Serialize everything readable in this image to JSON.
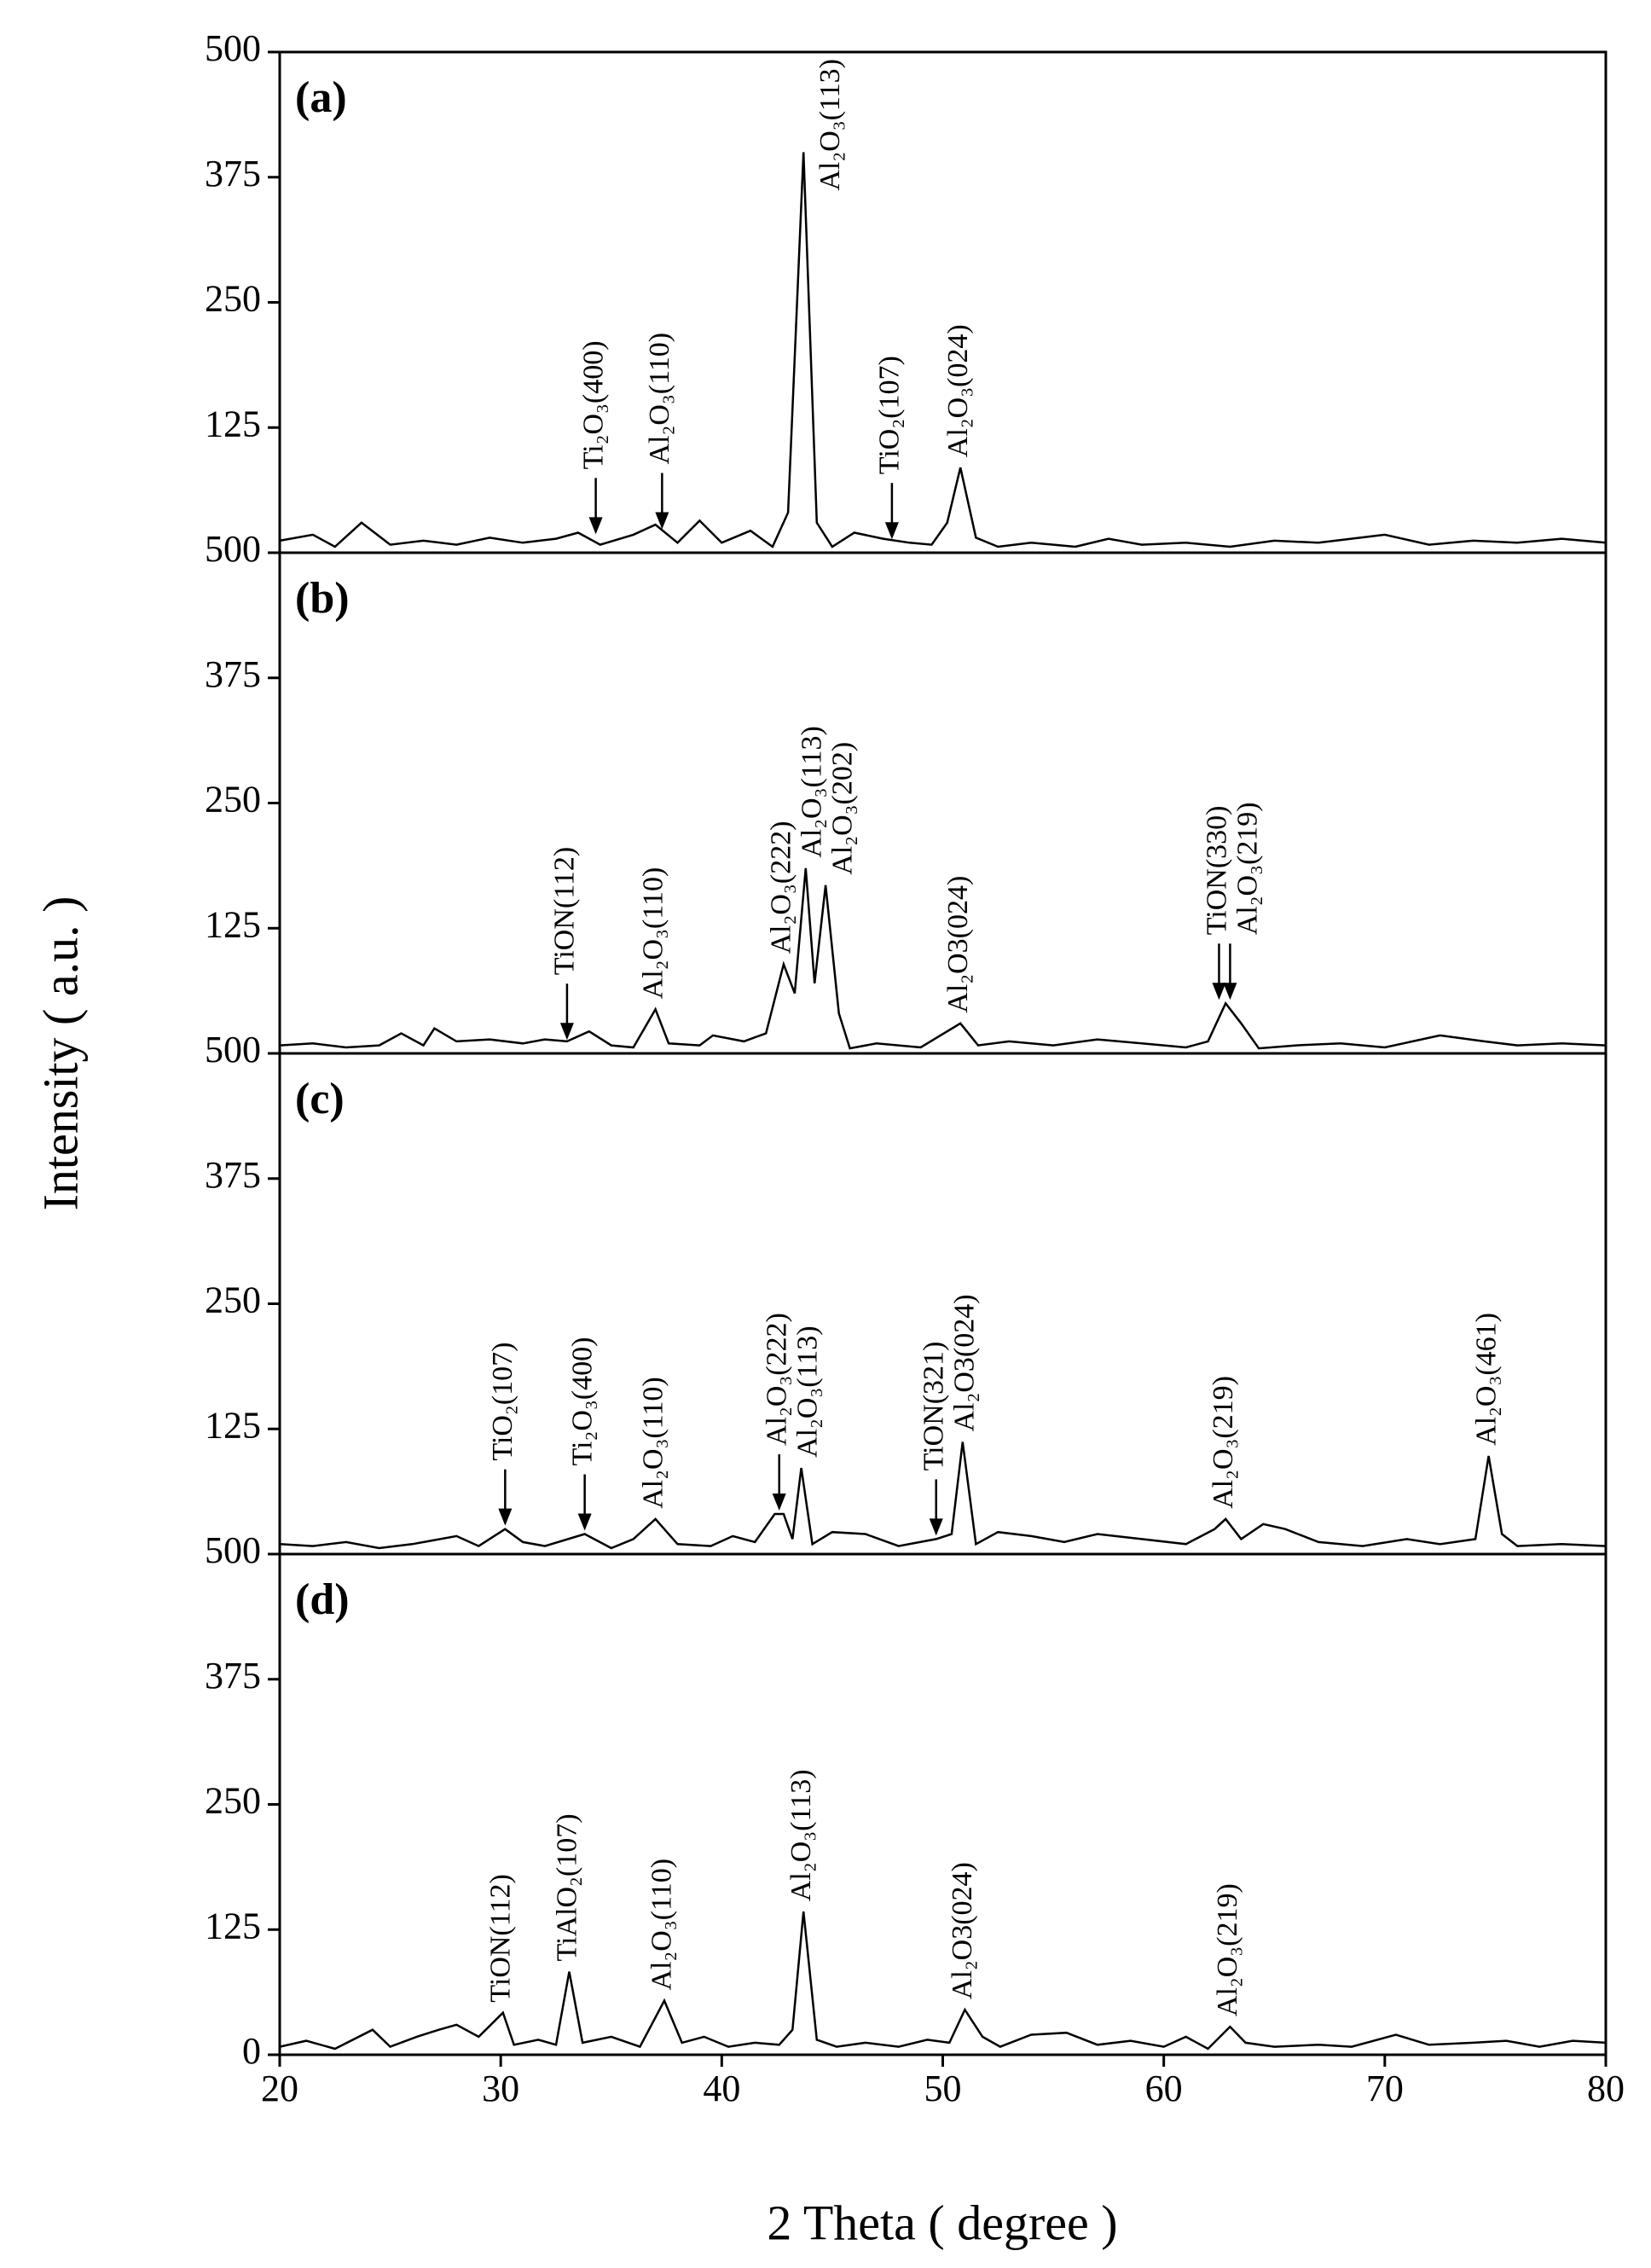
{
  "y_label": "Intensity ( a.u. )",
  "x_label": "2 Theta ( degree )",
  "chart_data": [
    {
      "type": "line",
      "label": "(a)",
      "color": "#000000",
      "xlim": [
        20,
        80
      ],
      "ylim": [
        0,
        500
      ],
      "yticks": [
        125,
        250,
        375,
        500
      ],
      "x": [
        20,
        21.5,
        22.5,
        23.7,
        25,
        26.5,
        28,
        29.5,
        31,
        32.5,
        33.5,
        34.5,
        36,
        37,
        38,
        39,
        40,
        41.3,
        42.3,
        43,
        43.7,
        44.3,
        45,
        46,
        47.3,
        48.5,
        49.5,
        50.2,
        50.8,
        51.5,
        52.5,
        54,
        56,
        57.5,
        59,
        61,
        63,
        65,
        67,
        70,
        72,
        74,
        76,
        78,
        80
      ],
      "values": [
        12,
        18,
        6,
        30,
        8,
        12,
        8,
        15,
        10,
        14,
        20,
        8,
        18,
        28,
        10,
        32,
        10,
        22,
        6,
        40,
        400,
        30,
        6,
        20,
        14,
        10,
        8,
        30,
        85,
        15,
        6,
        10,
        6,
        14,
        8,
        10,
        6,
        12,
        10,
        18,
        8,
        12,
        10,
        14,
        10
      ],
      "annotations": [
        {
          "text": "Ti₂O₃(400)",
          "x": 34.3,
          "y": 15,
          "arrow": true
        },
        {
          "text": "Al₂O₃(110)",
          "x": 37.3,
          "y": 20,
          "arrow": true
        },
        {
          "text": "Al₂O₃(113)",
          "x": 43.7,
          "y": 400,
          "arrow": false
        },
        {
          "text": "TiO₂(107)",
          "x": 47.7,
          "y": 10,
          "arrow": true
        },
        {
          "text": "Al₂O₃(024)",
          "x": 50.8,
          "y": 85,
          "arrow": false
        }
      ]
    },
    {
      "type": "line",
      "label": "(b)",
      "color": "#000000",
      "xlim": [
        20,
        80
      ],
      "ylim": [
        0,
        500
      ],
      "yticks": [
        125,
        250,
        375,
        500
      ],
      "x": [
        20,
        21.5,
        23,
        24.5,
        25.5,
        26.5,
        27,
        28,
        29.5,
        31,
        32,
        33,
        34,
        35,
        36,
        37,
        37.6,
        39,
        39.6,
        41,
        42,
        42.8,
        43.3,
        43.8,
        44.2,
        44.7,
        45.3,
        45.8,
        47,
        49,
        50.8,
        51.6,
        53,
        55,
        57,
        59,
        61,
        62,
        62.8,
        63.5,
        64.3,
        66,
        68,
        70,
        72.5,
        74.5,
        76,
        78,
        80
      ],
      "values": [
        8,
        10,
        6,
        8,
        20,
        8,
        25,
        12,
        14,
        10,
        14,
        12,
        22,
        8,
        6,
        44,
        10,
        8,
        18,
        12,
        20,
        89,
        60,
        185,
        70,
        168,
        40,
        5,
        10,
        6,
        30,
        8,
        12,
        8,
        14,
        10,
        6,
        12,
        50,
        30,
        5,
        8,
        10,
        6,
        18,
        12,
        8,
        10,
        8
      ],
      "annotations": [
        {
          "text": "TiON(112)",
          "x": 33,
          "y": 10,
          "arrow": true
        },
        {
          "text": "Al₂O₃(110)",
          "x": 37,
          "y": 44,
          "arrow": false
        },
        {
          "text": "Al₂O₃(222)",
          "x": 42.8,
          "y": 89,
          "arrow": false
        },
        {
          "text": "Al₂O₃(113)",
          "x": 43.8,
          "y": 185,
          "arrow": false
        },
        {
          "text": "Al₂O₃(202)",
          "x": 44.7,
          "y": 168,
          "arrow": false
        },
        {
          "text": "Al₂O3(024)",
          "x": 50.8,
          "y": 30,
          "arrow": false
        },
        {
          "text": "TiON(330)",
          "x": 62.5,
          "y": 50,
          "arrow": true
        },
        {
          "text": "Al₂O₃(219)",
          "x": 63,
          "y": 50,
          "arrow": true
        }
      ]
    },
    {
      "type": "line",
      "label": "(c)",
      "color": "#000000",
      "xlim": [
        20,
        80
      ],
      "ylim": [
        0,
        500
      ],
      "yticks": [
        125,
        250,
        375,
        500
      ],
      "x": [
        20,
        21.5,
        23,
        24.5,
        26,
        28,
        29,
        30.2,
        31,
        32,
        33.8,
        35,
        36,
        37,
        38,
        39.5,
        40.5,
        41.5,
        42.4,
        42.8,
        43.2,
        43.6,
        44.1,
        45,
        46.5,
        48,
        49.7,
        50.4,
        50.9,
        51.5,
        52.5,
        54,
        55.5,
        57,
        59,
        61,
        62.3,
        62.8,
        63.5,
        64.5,
        65.5,
        67,
        69,
        71,
        72.5,
        74.1,
        74.7,
        75.3,
        76,
        78,
        80
      ],
      "values": [
        10,
        8,
        12,
        6,
        10,
        18,
        8,
        25,
        12,
        8,
        20,
        6,
        15,
        35,
        10,
        8,
        18,
        12,
        40,
        40,
        15,
        86,
        10,
        22,
        20,
        8,
        15,
        20,
        112,
        10,
        22,
        18,
        12,
        20,
        15,
        10,
        25,
        35,
        15,
        30,
        25,
        12,
        8,
        15,
        10,
        15,
        98,
        20,
        8,
        10,
        8
      ],
      "annotations": [
        {
          "text": "TiO₂(107)",
          "x": 30.2,
          "y": 25,
          "arrow": true
        },
        {
          "text": "Ti₂O₃(400)",
          "x": 33.8,
          "y": 20,
          "arrow": true
        },
        {
          "text": "Al₂O₃(110)",
          "x": 37,
          "y": 35,
          "arrow": false
        },
        {
          "text": "Al₂O₃(222)",
          "x": 42.6,
          "y": 40,
          "arrow": true
        },
        {
          "text": "Al₂O₃(113)",
          "x": 43.6,
          "y": 86,
          "arrow": false
        },
        {
          "text": "TiON(321)",
          "x": 49.7,
          "y": 15,
          "arrow": true
        },
        {
          "text": "Al₂O3(024)",
          "x": 50.9,
          "y": 112,
          "arrow": false
        },
        {
          "text": "Al₂O₃(219)",
          "x": 62.8,
          "y": 35,
          "arrow": false
        },
        {
          "text": "Al₂O₃(461)",
          "x": 74.7,
          "y": 98,
          "arrow": false
        }
      ]
    },
    {
      "type": "line",
      "label": "(d)",
      "color": "#000000",
      "xlim": [
        20,
        80
      ],
      "ylim": [
        0,
        500
      ],
      "yticks": [
        0,
        125,
        250,
        375,
        500
      ],
      "xticks": [
        20,
        30,
        40,
        50,
        60,
        70,
        80
      ],
      "x": [
        20,
        21.2,
        22.5,
        24.2,
        25,
        26.2,
        27.2,
        28,
        29,
        30.1,
        30.6,
        31.7,
        32.5,
        33.1,
        33.7,
        35,
        36.3,
        37.4,
        38.2,
        39.2,
        40.3,
        41.5,
        42.6,
        43.2,
        43.7,
        44.3,
        45.2,
        46.5,
        48,
        49.3,
        50.3,
        51,
        51.8,
        52.6,
        54,
        55.6,
        57,
        58.5,
        60,
        61,
        62,
        63,
        63.7,
        65,
        67,
        68.5,
        70.5,
        72,
        74,
        75.5,
        77,
        78.5,
        80
      ],
      "values": [
        8,
        14,
        6,
        25,
        8,
        18,
        25,
        30,
        18,
        42,
        10,
        15,
        10,
        83,
        12,
        18,
        8,
        54,
        12,
        18,
        8,
        12,
        10,
        25,
        143,
        15,
        8,
        12,
        8,
        15,
        12,
        45,
        18,
        8,
        20,
        22,
        10,
        14,
        8,
        18,
        6,
        28,
        12,
        8,
        10,
        8,
        20,
        10,
        12,
        14,
        8,
        14,
        12
      ],
      "annotations": [
        {
          "text": "TiON(112)",
          "x": 30.1,
          "y": 42,
          "arrow": false
        },
        {
          "text": "TiAlO₂(107)",
          "x": 33.1,
          "y": 83,
          "arrow": false
        },
        {
          "text": "Al₂O₃(110)",
          "x": 37.4,
          "y": 54,
          "arrow": false
        },
        {
          "text": "Al₂O₃(113)",
          "x": 43.7,
          "y": 143,
          "arrow": false
        },
        {
          "text": "Al₂O3(024)",
          "x": 51,
          "y": 45,
          "arrow": false
        },
        {
          "text": "Al₂O₃(219)",
          "x": 63,
          "y": 28,
          "arrow": false
        }
      ]
    }
  ]
}
